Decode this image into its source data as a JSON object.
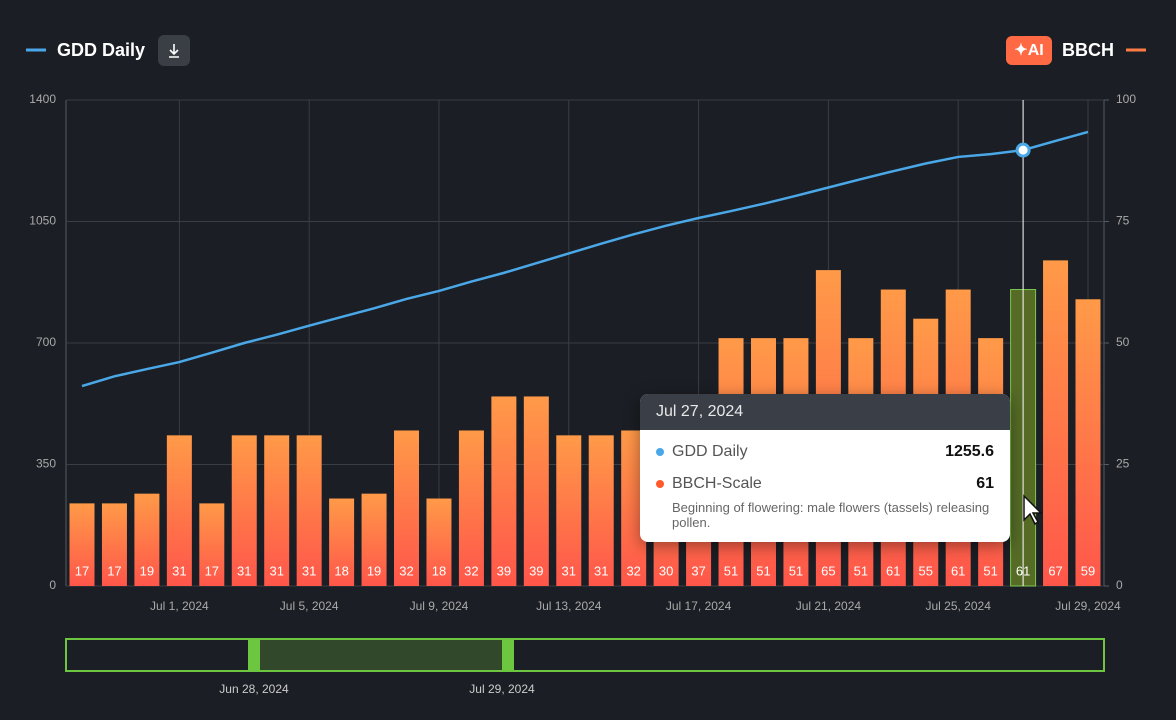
{
  "header": {
    "ai": "✦AI",
    "right": "BBCH"
  },
  "chart_data": {
    "type": "bar",
    "categories": [
      null,
      null,
      null,
      "Jul 1, 2024",
      null,
      null,
      null,
      "Jul 5, 2024",
      null,
      null,
      null,
      "Jul 9, 2024",
      null,
      null,
      null,
      "Jul 13, 2024",
      null,
      null,
      null,
      "Jul 17, 2024",
      null,
      null,
      null,
      "Jul 21, 2024",
      null,
      null,
      null,
      "Jul 25, 2024",
      null,
      null,
      null,
      "Jul 29, 2024"
    ],
    "series": [
      {
        "name": "GDD Daily",
        "type": "line",
        "color": "#4aa8e8",
        "axis": "y",
        "values": [
          576,
          604,
          625,
          645,
          672,
          700,
          724,
          750,
          775,
          800,
          827,
          850,
          877,
          902,
          930,
          958,
          986,
          1013,
          1038,
          1060,
          1080,
          1101,
          1124,
          1148,
          1172,
          1195,
          1217,
          1236,
          1244,
          1255.6,
          1282,
          1308
        ]
      },
      {
        "name": "BBCH-Scale",
        "type": "bar",
        "color": "#ff7a45",
        "axis": "y2",
        "values": [
          17,
          17,
          19,
          31,
          17,
          31,
          31,
          31,
          18,
          19,
          32,
          18,
          32,
          39,
          39,
          31,
          31,
          32,
          30,
          37,
          51,
          51,
          51,
          65,
          51,
          61,
          55,
          61,
          51,
          61,
          67,
          59
        ]
      }
    ],
    "ylim": [
      0,
      1400
    ],
    "yticks": [
      0,
      350,
      700,
      1050,
      1400
    ],
    "y2lim": [
      0,
      100
    ],
    "y2ticks": [
      0,
      25,
      50,
      75,
      100
    ],
    "grid": true
  },
  "tooltip": {
    "title": "Jul 27, 2024",
    "description": "Beginning of flowering: male flowers (tassels) releasing pollen."
  },
  "navigator": {
    "start": "Jun 28, 2024",
    "end": "Jul 29, 2024"
  }
}
